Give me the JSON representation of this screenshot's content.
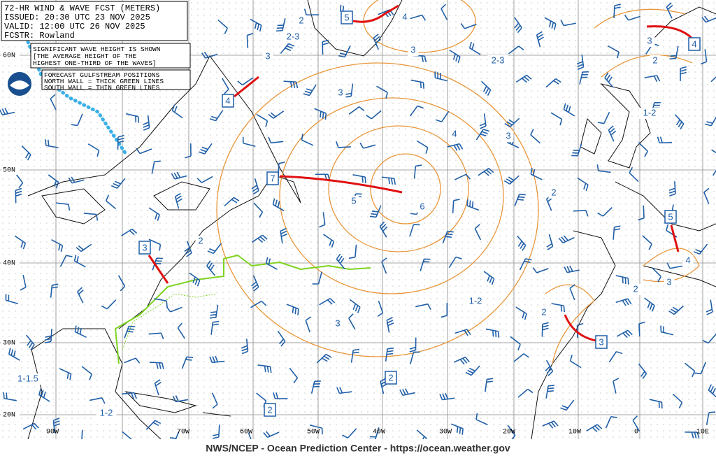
{
  "header": {
    "lines": [
      "72-HR WIND & WAVE FCST (METERS)",
      "ISSUED:  20:30 UTC 23 NOV 2025",
      "VALID:   12:00 UTC 26 NOV 2025",
      "FCSTR:   Rowland"
    ]
  },
  "notes": {
    "wave_height": [
      "SIGNIFICANT WAVE HEIGHT IS SHOWN",
      "[THE AVERAGE HEIGHT OF THE",
      "HIGHEST ONE-THIRD OF THE WAVES]"
    ],
    "gulfstream": [
      "FORECAST GULFSTREAM POSITIONS",
      "NORTH WALL = THICK GREEN LINES",
      "SOUTH WALL = THIN GREEN LINES"
    ]
  },
  "latitude_labels": [
    "60N",
    "50N",
    "40N",
    "30N",
    "20N"
  ],
  "longitude_labels": [
    "90W",
    "70W",
    "60W",
    "50W",
    "40W",
    "30W",
    "20W",
    "10W",
    "0",
    "10E"
  ],
  "wave_labels": [
    "2",
    "2-3",
    "4",
    "3",
    "3",
    "2-3",
    "3",
    "2",
    "3",
    "4",
    "3",
    "1-2",
    "5",
    "6",
    "2",
    "2",
    "1-2",
    "2",
    "2",
    "3",
    "4",
    "3",
    "1-1.5",
    "1-2"
  ],
  "boxed_labels": [
    "5",
    "4",
    "4",
    "7",
    "3",
    "5",
    "3",
    "2",
    "2"
  ],
  "footer": "NWS/NCEP - Ocean Prediction Center - https://ocean.weather.gov"
}
